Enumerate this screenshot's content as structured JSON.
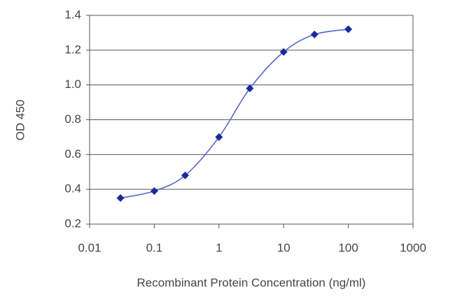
{
  "chart_data": {
    "type": "line",
    "x_label": "Recombinant Protein Concentration (ng/ml)",
    "y_label": "OD 450",
    "x": [
      0.03,
      0.1,
      0.3,
      1,
      3,
      10,
      30,
      100
    ],
    "values": [
      0.35,
      0.39,
      0.48,
      0.7,
      0.98,
      1.19,
      1.29,
      1.32
    ],
    "color": "#1a2a9a",
    "line_color": "#5566cc",
    "x_log": true,
    "xlim": [
      0.01,
      1000
    ],
    "xticks": [
      0.01,
      0.1,
      1,
      10,
      100,
      1000
    ],
    "ylim": [
      0.2,
      1.4
    ],
    "yticks": [
      0.2,
      0.4,
      0.6,
      0.8,
      {
        "value": 1,
        "label": "1.0"
      },
      1.2,
      1.4
    ],
    "grid": true
  }
}
